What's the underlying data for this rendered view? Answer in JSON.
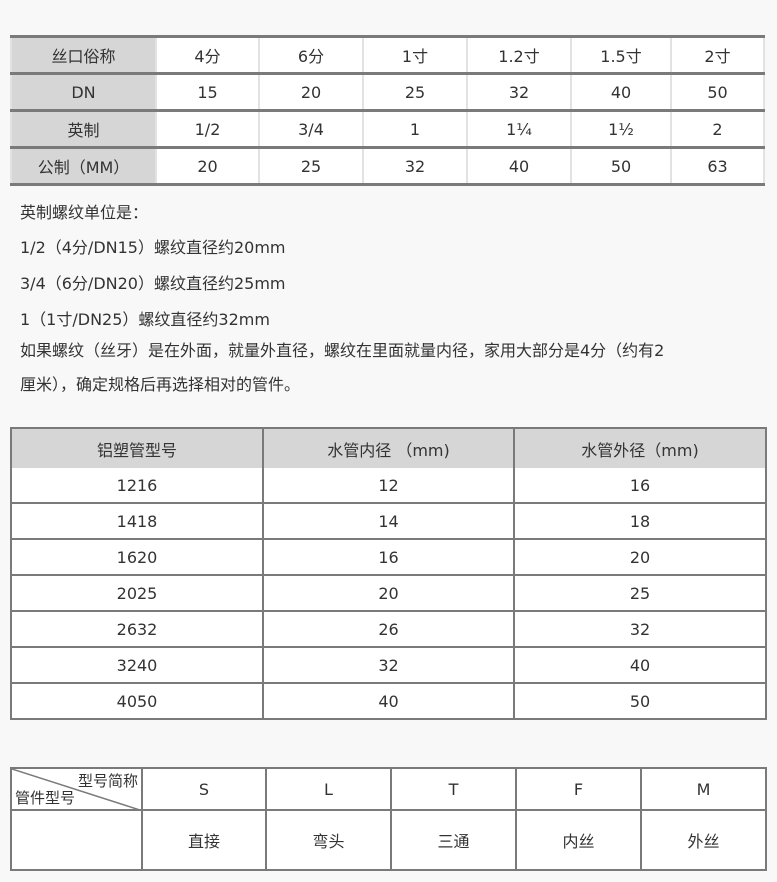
{
  "spec_table": {
    "rows": [
      [
        "丝口俗称",
        "4分",
        "6分",
        "1寸",
        "1.2寸",
        "1.5寸",
        "2寸"
      ],
      [
        "DN",
        "15",
        "20",
        "25",
        "32",
        "40",
        "50"
      ],
      [
        "英制",
        "1/2",
        "3/4",
        "1",
        "1¼",
        "1½",
        "2"
      ],
      [
        "公制（MM）",
        "20",
        "25",
        "32",
        "40",
        "50",
        "63"
      ]
    ]
  },
  "notes": [
    "英制螺纹单位是：",
    "1/2（4分/DN15）螺纹直径约20mm",
    "3/4（6分/DN20）螺纹直径约25mm",
    "1（1寸/DN25）螺纹直径约32mm",
    "如果螺纹（丝牙）是在外面，就量外直径，螺纹在里面就量内径，家用大部分是4分（约有2",
    "厘米），确定规格后再选择相对的管件。"
  ],
  "pipe_table": {
    "headers": [
      "铝塑管型号",
      "水管内径 （mm)",
      "水管外径（mm)"
    ],
    "rows": [
      [
        "1216",
        "12",
        "16"
      ],
      [
        "1418",
        "14",
        "18"
      ],
      [
        "1620",
        "16",
        "20"
      ],
      [
        "2025",
        "20",
        "25"
      ],
      [
        "2632",
        "26",
        "32"
      ],
      [
        "3240",
        "32",
        "40"
      ],
      [
        "4050",
        "40",
        "50"
      ]
    ]
  },
  "fitting_table": {
    "corner_top": "型号简称",
    "corner_bottom": "管件型号",
    "codes": [
      "S",
      "L",
      "T",
      "F",
      "M"
    ],
    "names": [
      "直接",
      "弯头",
      "三通",
      "内丝",
      "外丝"
    ]
  }
}
